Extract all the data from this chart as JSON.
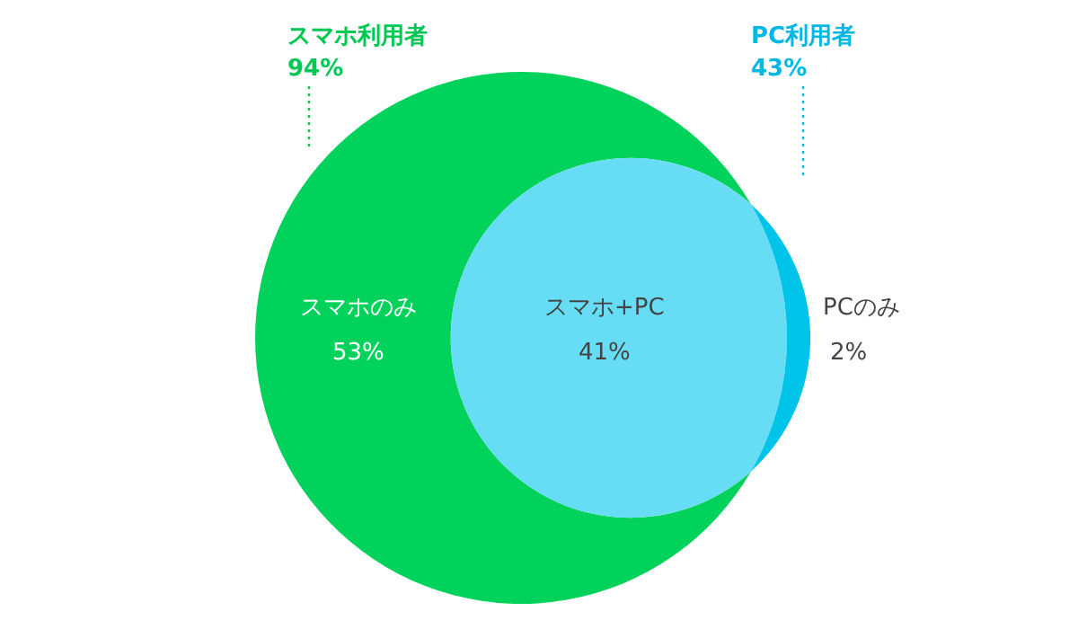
{
  "chart_data": {
    "type": "other",
    "categories": [
      "スマホ利用者",
      "PC利用者",
      "スマホのみ",
      "スマホ+PC",
      "PCのみ"
    ],
    "values": [
      94,
      43,
      53,
      41,
      2
    ],
    "value_labels": [
      "94%",
      "43%",
      "53%",
      "41%",
      "2%"
    ],
    "colors": [
      "#00c853",
      "#00b8e6",
      "#00d25b",
      "#66ddf5",
      "#00c3ea"
    ]
  }
}
